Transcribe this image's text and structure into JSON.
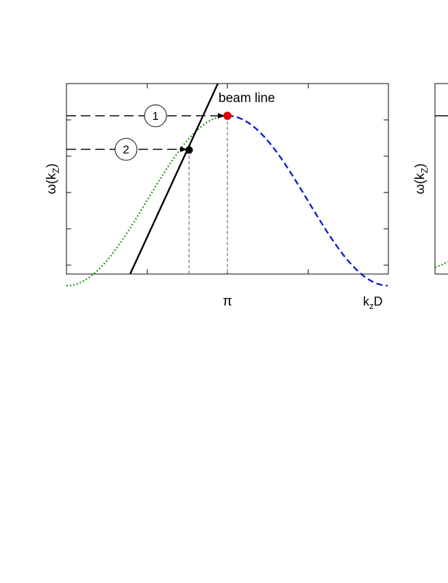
{
  "panels": [
    {
      "y_label": {
        "main": "ω(k",
        "sub": "Z",
        "end": ")"
      },
      "x_tick": "π",
      "x_label": {
        "main": "k",
        "sub": "z",
        "end": "D"
      },
      "annotation": "beam line",
      "markers": [
        "1",
        "2"
      ]
    },
    {
      "y_label": {
        "main": "ω(k",
        "sub": "Z",
        "end": ")"
      }
    }
  ]
}
